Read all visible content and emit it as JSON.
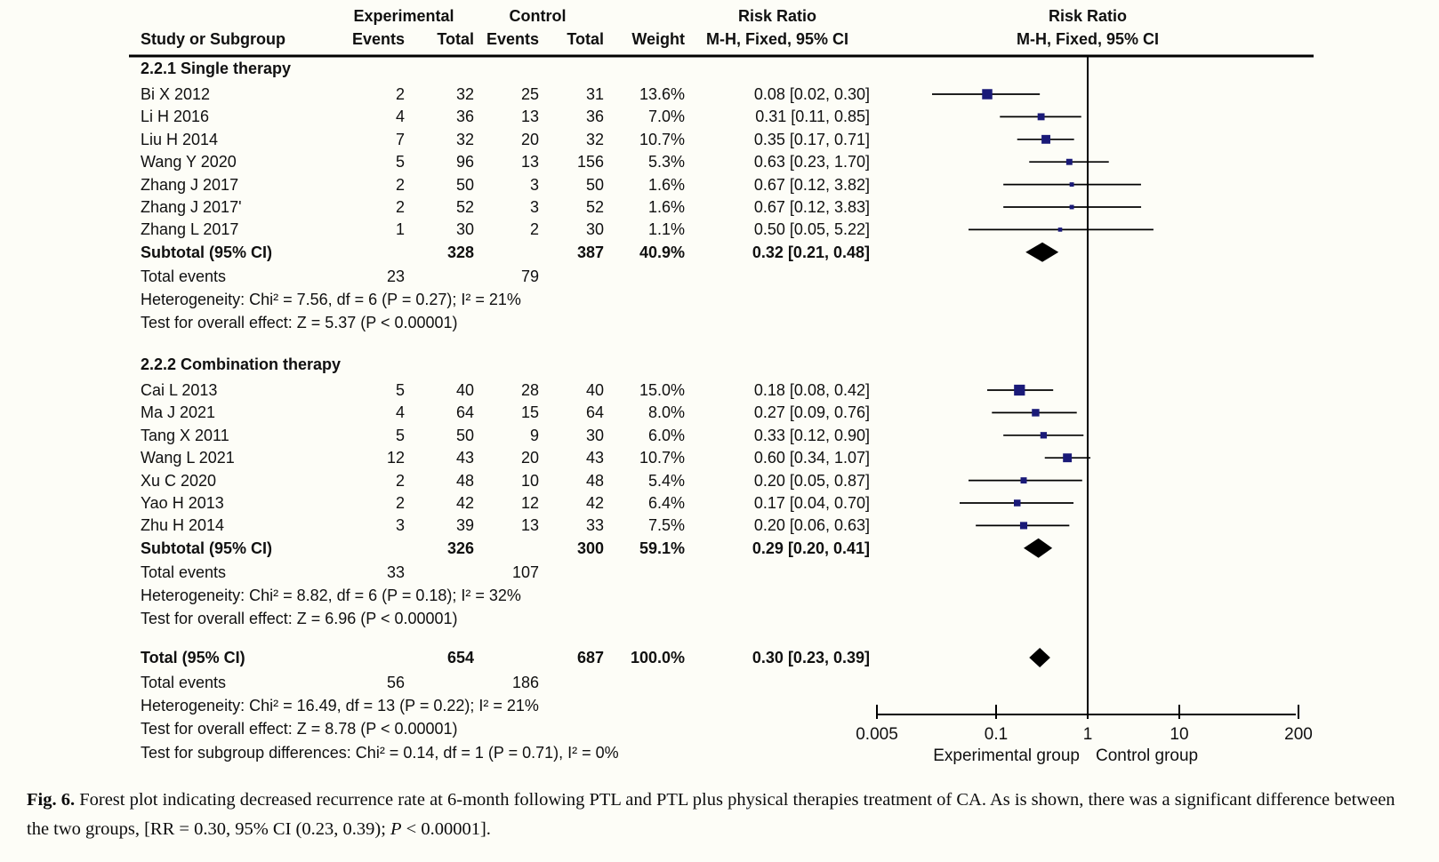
{
  "header": {
    "study": "Study or Subgroup",
    "experimental": "Experimental",
    "control": "Control",
    "events": "Events",
    "total": "Total",
    "weight": "Weight",
    "risk_ratio": "Risk Ratio",
    "method": "M-H, Fixed, 95% CI"
  },
  "labels": {
    "total_events": "Total events"
  },
  "chart_data": {
    "type": "forest",
    "effect_measure": "Risk Ratio",
    "method": "M-H, Fixed, 95% CI",
    "marker_color": "#1a1a78",
    "x_axis": {
      "scale": "log",
      "ticks": [
        "0.005",
        "0.1",
        "1",
        "10",
        "200"
      ],
      "range": [
        0.005,
        200
      ],
      "left_label": "Experimental group",
      "right_label": "Control group"
    },
    "subgroups": [
      {
        "name": "2.2.1 Single therapy",
        "studies": [
          {
            "study": "Bi X 2012",
            "events_exp": 2,
            "total_exp": 32,
            "events_ctrl": 25,
            "total_ctrl": 31,
            "weight": "13.6%",
            "rr_label": "0.08 [0.02, 0.30]",
            "rr": 0.08,
            "ci_low": 0.02,
            "ci_high": 0.3
          },
          {
            "study": "Li H 2016",
            "events_exp": 4,
            "total_exp": 36,
            "events_ctrl": 13,
            "total_ctrl": 36,
            "weight": "7.0%",
            "rr_label": "0.31 [0.11, 0.85]",
            "rr": 0.31,
            "ci_low": 0.11,
            "ci_high": 0.85
          },
          {
            "study": "Liu H 2014",
            "events_exp": 7,
            "total_exp": 32,
            "events_ctrl": 20,
            "total_ctrl": 32,
            "weight": "10.7%",
            "rr_label": "0.35 [0.17, 0.71]",
            "rr": 0.35,
            "ci_low": 0.17,
            "ci_high": 0.71
          },
          {
            "study": "Wang Y 2020",
            "events_exp": 5,
            "total_exp": 96,
            "events_ctrl": 13,
            "total_ctrl": 156,
            "weight": "5.3%",
            "rr_label": "0.63 [0.23, 1.70]",
            "rr": 0.63,
            "ci_low": 0.23,
            "ci_high": 1.7
          },
          {
            "study": "Zhang J 2017",
            "events_exp": 2,
            "total_exp": 50,
            "events_ctrl": 3,
            "total_ctrl": 50,
            "weight": "1.6%",
            "rr_label": "0.67 [0.12, 3.82]",
            "rr": 0.67,
            "ci_low": 0.12,
            "ci_high": 3.82
          },
          {
            "study": "Zhang J 2017'",
            "events_exp": 2,
            "total_exp": 52,
            "events_ctrl": 3,
            "total_ctrl": 52,
            "weight": "1.6%",
            "rr_label": "0.67 [0.12, 3.83]",
            "rr": 0.67,
            "ci_low": 0.12,
            "ci_high": 3.83
          },
          {
            "study": "Zhang L 2017",
            "events_exp": 1,
            "total_exp": 30,
            "events_ctrl": 2,
            "total_ctrl": 30,
            "weight": "1.1%",
            "rr_label": "0.50 [0.05, 5.22]",
            "rr": 0.5,
            "ci_low": 0.05,
            "ci_high": 5.22
          }
        ],
        "subtotal": {
          "label": "Subtotal (95% CI)",
          "total_exp": 328,
          "total_ctrl": 387,
          "weight": "40.9%",
          "rr_label": "0.32 [0.21, 0.48]",
          "rr": 0.32,
          "ci_low": 0.21,
          "ci_high": 0.48
        },
        "total_events": {
          "exp": 23,
          "ctrl": 79
        },
        "heterogeneity": "Heterogeneity: Chi² = 7.56, df = 6 (P = 0.27); I² = 21%",
        "overall_effect": "Test for overall effect: Z = 5.37 (P < 0.00001)"
      },
      {
        "name": "2.2.2 Combination therapy",
        "studies": [
          {
            "study": "Cai L 2013",
            "events_exp": 5,
            "total_exp": 40,
            "events_ctrl": 28,
            "total_ctrl": 40,
            "weight": "15.0%",
            "rr_label": "0.18 [0.08, 0.42]",
            "rr": 0.18,
            "ci_low": 0.08,
            "ci_high": 0.42
          },
          {
            "study": "Ma J 2021",
            "events_exp": 4,
            "total_exp": 64,
            "events_ctrl": 15,
            "total_ctrl": 64,
            "weight": "8.0%",
            "rr_label": "0.27 [0.09, 0.76]",
            "rr": 0.27,
            "ci_low": 0.09,
            "ci_high": 0.76
          },
          {
            "study": "Tang X 2011",
            "events_exp": 5,
            "total_exp": 50,
            "events_ctrl": 9,
            "total_ctrl": 30,
            "weight": "6.0%",
            "rr_label": "0.33 [0.12, 0.90]",
            "rr": 0.33,
            "ci_low": 0.12,
            "ci_high": 0.9
          },
          {
            "study": "Wang L 2021",
            "events_exp": 12,
            "total_exp": 43,
            "events_ctrl": 20,
            "total_ctrl": 43,
            "weight": "10.7%",
            "rr_label": "0.60 [0.34, 1.07]",
            "rr": 0.6,
            "ci_low": 0.34,
            "ci_high": 1.07
          },
          {
            "study": "Xu C 2020",
            "events_exp": 2,
            "total_exp": 48,
            "events_ctrl": 10,
            "total_ctrl": 48,
            "weight": "5.4%",
            "rr_label": "0.20 [0.05, 0.87]",
            "rr": 0.2,
            "ci_low": 0.05,
            "ci_high": 0.87
          },
          {
            "study": "Yao H 2013",
            "events_exp": 2,
            "total_exp": 42,
            "events_ctrl": 12,
            "total_ctrl": 42,
            "weight": "6.4%",
            "rr_label": "0.17 [0.04, 0.70]",
            "rr": 0.17,
            "ci_low": 0.04,
            "ci_high": 0.7
          },
          {
            "study": "Zhu H 2014",
            "events_exp": 3,
            "total_exp": 39,
            "events_ctrl": 13,
            "total_ctrl": 33,
            "weight": "7.5%",
            "rr_label": "0.20 [0.06, 0.63]",
            "rr": 0.2,
            "ci_low": 0.06,
            "ci_high": 0.63
          }
        ],
        "subtotal": {
          "label": "Subtotal (95% CI)",
          "total_exp": 326,
          "total_ctrl": 300,
          "weight": "59.1%",
          "rr_label": "0.29 [0.20, 0.41]",
          "rr": 0.29,
          "ci_low": 0.2,
          "ci_high": 0.41
        },
        "total_events": {
          "exp": 33,
          "ctrl": 107
        },
        "heterogeneity": "Heterogeneity: Chi² = 8.82, df = 6 (P = 0.18); I² = 32%",
        "overall_effect": "Test for overall effect: Z = 6.96 (P < 0.00001)"
      }
    ],
    "total": {
      "label": "Total (95% CI)",
      "total_exp": 654,
      "total_ctrl": 687,
      "weight": "100.0%",
      "rr_label": "0.30 [0.23, 0.39]",
      "rr": 0.3,
      "ci_low": 0.23,
      "ci_high": 0.39,
      "total_events": {
        "exp": 56,
        "ctrl": 186
      },
      "heterogeneity": "Heterogeneity: Chi² = 16.49, df = 13 (P = 0.22); I² = 21%",
      "overall_effect": "Test for overall effect: Z = 8.78 (P < 0.00001)",
      "subgroup_differences": "Test for subgroup differences: Chi² = 0.14, df = 1 (P = 0.71), I² = 0%"
    }
  },
  "caption": {
    "label": "Fig. 6.",
    "segments": [
      {
        "text": "Forest plot indicating decreased recurrence rate at 6-month following PTL and PTL plus physical therapies treatment of CA. As is shown, there was a significant difference between the two groups, [RR = 0.30, 95% CI (0.23, 0.39); ",
        "style": "normal"
      },
      {
        "text": "P",
        "style": "italic"
      },
      {
        "text": " < 0.00001].",
        "style": "normal"
      }
    ]
  }
}
